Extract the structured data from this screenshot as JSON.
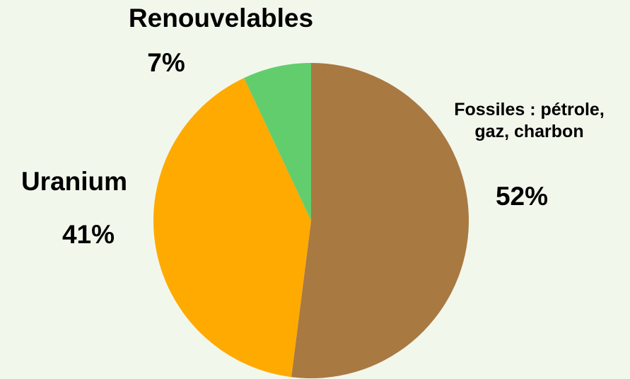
{
  "chart_data": {
    "type": "pie",
    "slices": [
      {
        "label": "Fossiles : pétrole, gaz, charbon",
        "label_line1": "Fossiles : pétrole,",
        "label_line2": "gaz, charbon",
        "value": 52,
        "value_text": "52%",
        "color": "#a97942"
      },
      {
        "label": "Uranium",
        "value": 41,
        "value_text": "41%",
        "color": "#ffaa00"
      },
      {
        "label": "Renouvelables",
        "value": 7,
        "value_text": "7%",
        "color": "#62cd6c"
      }
    ],
    "start_angle_deg": 0,
    "direction": "clockwise",
    "legend": "none",
    "background": "#f2f7ec"
  }
}
